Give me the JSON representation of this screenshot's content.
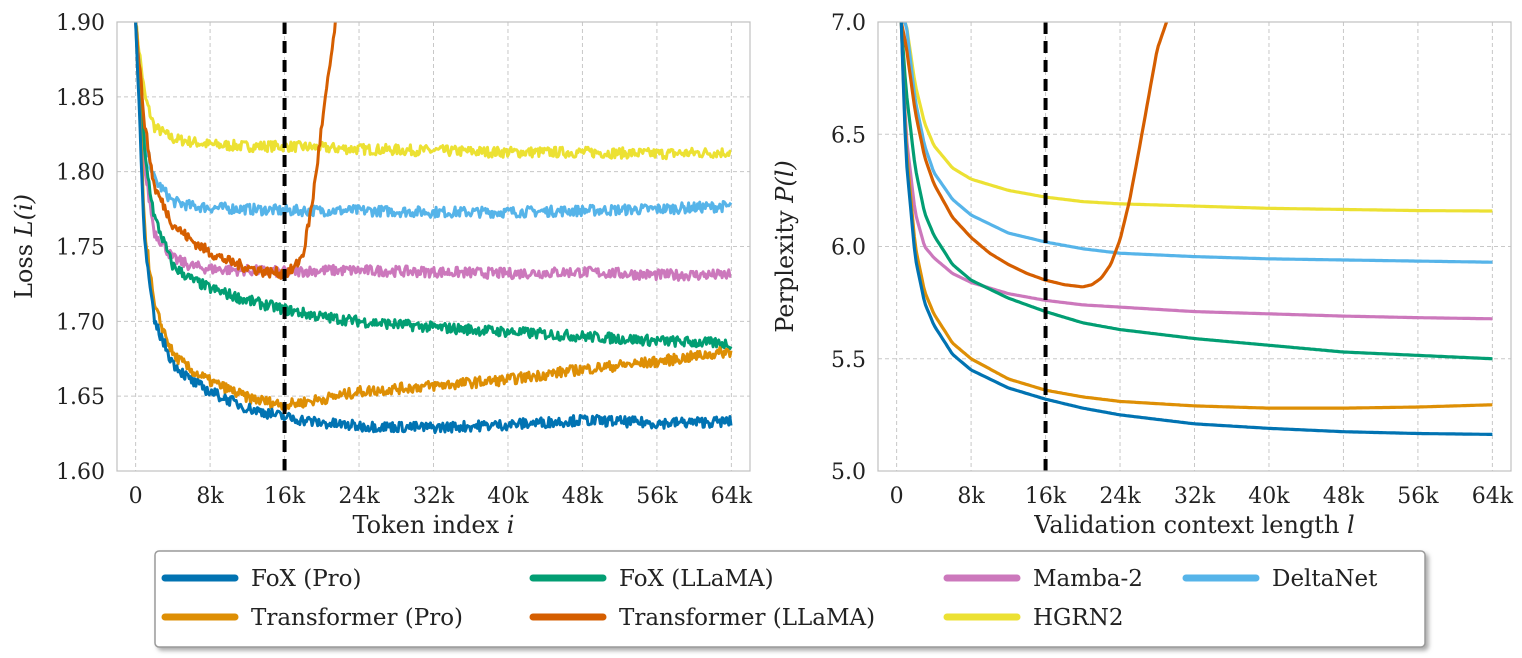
{
  "chart_data": [
    {
      "type": "line",
      "title": "",
      "xlabel": "Token index",
      "xlabel_var": "i",
      "ylabel": "Loss",
      "ylabel_var": "L(i)",
      "xlim": [
        -2000,
        66000
      ],
      "ylim": [
        1.6,
        1.9
      ],
      "xticks": [
        0,
        8000,
        16000,
        24000,
        32000,
        40000,
        48000,
        56000,
        64000
      ],
      "xtick_labels": [
        "0",
        "8k",
        "16k",
        "24k",
        "32k",
        "40k",
        "48k",
        "56k",
        "64k"
      ],
      "yticks": [
        1.6,
        1.65,
        1.7,
        1.75,
        1.8,
        1.85,
        1.9
      ],
      "ytick_labels": [
        "1.60",
        "1.65",
        "1.70",
        "1.75",
        "1.80",
        "1.85",
        "1.90"
      ],
      "grid": true,
      "vline_x": 16000,
      "noisy": true,
      "series": [
        {
          "name": "FoX (Pro)",
          "color": "#0173b2",
          "x": [
            0,
            1000,
            2000,
            4000,
            6000,
            8000,
            12000,
            16000,
            20000,
            24000,
            32000,
            40000,
            48000,
            56000,
            64000
          ],
          "y": [
            1.9,
            1.75,
            1.7,
            1.672,
            1.66,
            1.653,
            1.642,
            1.636,
            1.632,
            1.63,
            1.629,
            1.631,
            1.634,
            1.632,
            1.633
          ]
        },
        {
          "name": "Transformer (Pro)",
          "color": "#de8f05",
          "x": [
            0,
            1000,
            2000,
            4000,
            6000,
            8000,
            12000,
            16000,
            20000,
            24000,
            32000,
            40000,
            48000,
            56000,
            64000
          ],
          "y": [
            1.9,
            1.76,
            1.71,
            1.678,
            1.667,
            1.66,
            1.649,
            1.644,
            1.648,
            1.653,
            1.657,
            1.661,
            1.668,
            1.673,
            1.68
          ]
        },
        {
          "name": "FoX (LLaMA)",
          "color": "#029e73",
          "x": [
            0,
            1000,
            2000,
            4000,
            6000,
            8000,
            12000,
            16000,
            20000,
            24000,
            32000,
            40000,
            48000,
            56000,
            64000
          ],
          "y": [
            1.9,
            1.81,
            1.77,
            1.737,
            1.728,
            1.722,
            1.714,
            1.708,
            1.703,
            1.7,
            1.696,
            1.693,
            1.69,
            1.687,
            1.685
          ]
        },
        {
          "name": "Transformer (LLaMA)",
          "color": "#d55e00",
          "x": [
            0,
            1000,
            2000,
            4000,
            6000,
            8000,
            10000,
            12000,
            14000,
            16000,
            17000,
            18000,
            19000,
            20000,
            21500
          ],
          "y": [
            1.9,
            1.83,
            1.79,
            1.765,
            1.754,
            1.746,
            1.74,
            1.736,
            1.733,
            1.732,
            1.735,
            1.745,
            1.78,
            1.83,
            1.9
          ]
        },
        {
          "name": "Mamba-2",
          "color": "#cc78bc",
          "x": [
            0,
            1000,
            2000,
            4000,
            6000,
            8000,
            12000,
            16000,
            20000,
            24000,
            32000,
            40000,
            48000,
            56000,
            64000
          ],
          "y": [
            1.9,
            1.8,
            1.76,
            1.742,
            1.737,
            1.735,
            1.734,
            1.733,
            1.734,
            1.734,
            1.733,
            1.732,
            1.733,
            1.731,
            1.731
          ]
        },
        {
          "name": "HGRN2",
          "color": "#ece133",
          "x": [
            0,
            1000,
            2000,
            4000,
            6000,
            8000,
            12000,
            16000,
            20000,
            24000,
            32000,
            40000,
            48000,
            56000,
            64000
          ],
          "y": [
            1.9,
            1.85,
            1.83,
            1.822,
            1.82,
            1.818,
            1.817,
            1.817,
            1.816,
            1.815,
            1.814,
            1.813,
            1.813,
            1.812,
            1.813
          ]
        },
        {
          "name": "DeltaNet",
          "color": "#56b4e9",
          "x": [
            0,
            1000,
            2000,
            4000,
            6000,
            8000,
            12000,
            16000,
            20000,
            24000,
            32000,
            40000,
            48000,
            56000,
            64000
          ],
          "y": [
            1.9,
            1.82,
            1.795,
            1.78,
            1.777,
            1.776,
            1.775,
            1.774,
            1.774,
            1.774,
            1.773,
            1.773,
            1.774,
            1.775,
            1.777
          ]
        }
      ]
    },
    {
      "type": "line",
      "title": "",
      "xlabel": "Validation context length",
      "xlabel_var": "l",
      "ylabel": "Perplexity",
      "ylabel_var": "P(l)",
      "xlim": [
        -2000,
        66000
      ],
      "ylim": [
        5.0,
        7.0
      ],
      "xticks": [
        0,
        8000,
        16000,
        24000,
        32000,
        40000,
        48000,
        56000,
        64000
      ],
      "xtick_labels": [
        "0",
        "8k",
        "16k",
        "24k",
        "32k",
        "40k",
        "48k",
        "56k",
        "64k"
      ],
      "yticks": [
        5.0,
        5.5,
        6.0,
        6.5,
        7.0
      ],
      "ytick_labels": [
        "5.0",
        "5.5",
        "6.0",
        "6.5",
        "7.0"
      ],
      "grid": true,
      "vline_x": 16000,
      "noisy": false,
      "series": [
        {
          "name": "FoX (Pro)",
          "color": "#0173b2",
          "x": [
            500,
            1000,
            2000,
            3000,
            4000,
            6000,
            8000,
            12000,
            16000,
            20000,
            24000,
            32000,
            40000,
            48000,
            56000,
            64000
          ],
          "y": [
            7.0,
            6.4,
            5.95,
            5.75,
            5.65,
            5.52,
            5.45,
            5.37,
            5.32,
            5.28,
            5.25,
            5.21,
            5.19,
            5.175,
            5.167,
            5.163
          ]
        },
        {
          "name": "Transformer (Pro)",
          "color": "#de8f05",
          "x": [
            500,
            1000,
            2000,
            3000,
            4000,
            6000,
            8000,
            12000,
            16000,
            20000,
            24000,
            32000,
            40000,
            48000,
            56000,
            64000
          ],
          "y": [
            7.0,
            6.45,
            6.0,
            5.8,
            5.7,
            5.57,
            5.5,
            5.41,
            5.36,
            5.33,
            5.31,
            5.29,
            5.28,
            5.28,
            5.285,
            5.295
          ]
        },
        {
          "name": "FoX (LLaMA)",
          "color": "#029e73",
          "x": [
            500,
            1000,
            2000,
            3000,
            4000,
            6000,
            8000,
            12000,
            16000,
            20000,
            24000,
            32000,
            40000,
            48000,
            56000,
            64000
          ],
          "y": [
            7.0,
            6.7,
            6.35,
            6.15,
            6.05,
            5.92,
            5.85,
            5.77,
            5.71,
            5.66,
            5.63,
            5.59,
            5.56,
            5.53,
            5.515,
            5.5
          ]
        },
        {
          "name": "Transformer (LLaMA)",
          "color": "#d55e00",
          "x": [
            500,
            1000,
            2000,
            3000,
            4000,
            6000,
            8000,
            10000,
            12000,
            14000,
            16000,
            18000,
            20000,
            21000,
            22000,
            23000,
            24000,
            25000,
            26000,
            27000,
            28000,
            29000
          ],
          "y": [
            7.0,
            6.9,
            6.6,
            6.4,
            6.28,
            6.13,
            6.04,
            5.97,
            5.92,
            5.88,
            5.85,
            5.83,
            5.82,
            5.83,
            5.86,
            5.92,
            6.03,
            6.2,
            6.42,
            6.65,
            6.88,
            7.0
          ]
        },
        {
          "name": "Mamba-2",
          "color": "#cc78bc",
          "x": [
            500,
            1000,
            2000,
            3000,
            4000,
            6000,
            8000,
            12000,
            16000,
            20000,
            24000,
            32000,
            40000,
            48000,
            56000,
            64000
          ],
          "y": [
            7.0,
            6.5,
            6.15,
            6.0,
            5.95,
            5.88,
            5.84,
            5.79,
            5.76,
            5.74,
            5.73,
            5.71,
            5.7,
            5.69,
            5.683,
            5.678
          ]
        },
        {
          "name": "HGRN2",
          "color": "#ece133",
          "x": [
            500,
            1000,
            2000,
            3000,
            4000,
            6000,
            8000,
            12000,
            16000,
            20000,
            24000,
            32000,
            40000,
            48000,
            56000,
            64000
          ],
          "y": [
            7.0,
            7.0,
            6.72,
            6.55,
            6.45,
            6.35,
            6.3,
            6.25,
            6.22,
            6.2,
            6.19,
            6.18,
            6.17,
            6.165,
            6.16,
            6.158
          ]
        },
        {
          "name": "DeltaNet",
          "color": "#56b4e9",
          "x": [
            500,
            1000,
            2000,
            3000,
            4000,
            6000,
            8000,
            12000,
            16000,
            20000,
            24000,
            32000,
            40000,
            48000,
            56000,
            64000
          ],
          "y": [
            7.0,
            7.0,
            6.65,
            6.45,
            6.33,
            6.21,
            6.14,
            6.06,
            6.02,
            5.99,
            5.97,
            5.955,
            5.945,
            5.94,
            5.935,
            5.93
          ]
        }
      ]
    }
  ],
  "legend": {
    "placement": "bottom-center",
    "columns": 4,
    "entries": [
      {
        "name": "FoX (Pro)",
        "color": "#0173b2"
      },
      {
        "name": "Transformer (Pro)",
        "color": "#de8f05"
      },
      {
        "name": "FoX (LLaMA)",
        "color": "#029e73"
      },
      {
        "name": "Transformer (LLaMA)",
        "color": "#d55e00"
      },
      {
        "name": "Mamba-2",
        "color": "#cc78bc"
      },
      {
        "name": "HGRN2",
        "color": "#ece133"
      },
      {
        "name": "DeltaNet",
        "color": "#56b4e9"
      }
    ]
  }
}
